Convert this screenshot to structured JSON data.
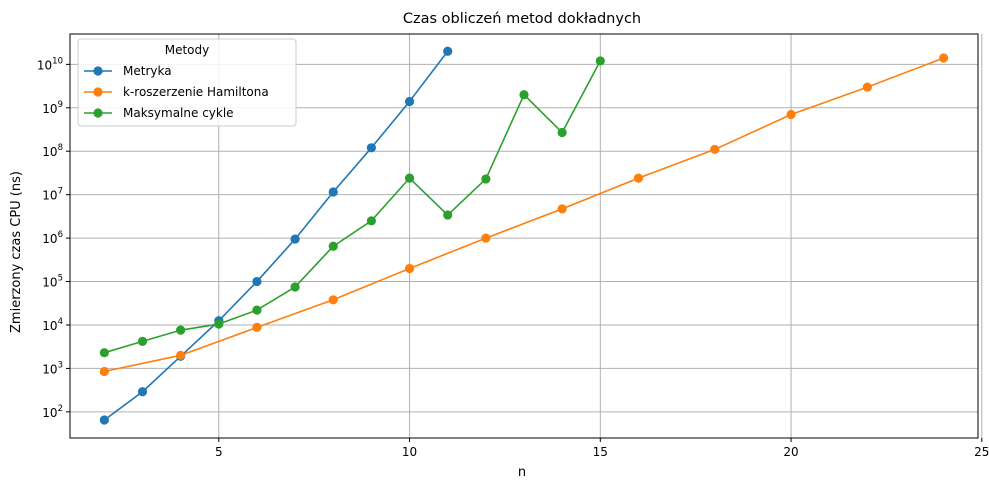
{
  "chart_data": {
    "type": "line",
    "title": "Czas obliczeń metod dokładnych",
    "xlabel": "n",
    "ylabel": "Zmierzony czas CPU (ns)",
    "xlim": [
      1.1,
      24.9
    ],
    "ylim": [
      25,
      50000000000
    ],
    "yscale": "log",
    "grid": true,
    "x_ticks": [
      5,
      10,
      15,
      20,
      25
    ],
    "x_tick_labels": [
      "5",
      "10",
      "15",
      "20",
      "25"
    ],
    "y_ticks": [
      100,
      1000,
      10000,
      100000,
      1000000,
      10000000,
      100000000,
      1000000000,
      10000000000
    ],
    "y_tick_labels": [
      {
        "base": "10",
        "exp": "2"
      },
      {
        "base": "10",
        "exp": "3"
      },
      {
        "base": "10",
        "exp": "4"
      },
      {
        "base": "10",
        "exp": "5"
      },
      {
        "base": "10",
        "exp": "6"
      },
      {
        "base": "10",
        "exp": "7"
      },
      {
        "base": "10",
        "exp": "8"
      },
      {
        "base": "10",
        "exp": "9"
      },
      {
        "base": "10",
        "exp": "10"
      }
    ],
    "legend": {
      "title": "Metody",
      "position": "top-left"
    },
    "series": [
      {
        "name": "Metryka",
        "color": "#1f77b4",
        "marker": "circle",
        "x": [
          2,
          3,
          4,
          5,
          6,
          7,
          8,
          9,
          10,
          11
        ],
        "y": [
          65,
          290,
          1900,
          12500,
          100000,
          950000,
          11500000,
          120000000,
          1400000000,
          20000000000
        ]
      },
      {
        "name": "k-roszerzenie Hamiltona",
        "color": "#ff7f0e",
        "marker": "circle",
        "x": [
          2,
          4,
          6,
          8,
          10,
          12,
          14,
          16,
          18,
          20,
          22,
          24
        ],
        "y": [
          850,
          2000,
          8800,
          38000,
          200000,
          1000000,
          4700000,
          24000000,
          110000000,
          700000000,
          3000000000,
          14000000000
        ]
      },
      {
        "name": "Maksymalne cykle",
        "color": "#2ca02c",
        "marker": "circle",
        "x": [
          2,
          3,
          4,
          5,
          6,
          7,
          8,
          9,
          10,
          11,
          12,
          13,
          14,
          15
        ],
        "y": [
          2300,
          4200,
          7600,
          10500,
          22000,
          75000,
          650000,
          2500000,
          24000000,
          3400000,
          23000000,
          2000000000,
          270000000,
          12000000000
        ]
      }
    ]
  }
}
